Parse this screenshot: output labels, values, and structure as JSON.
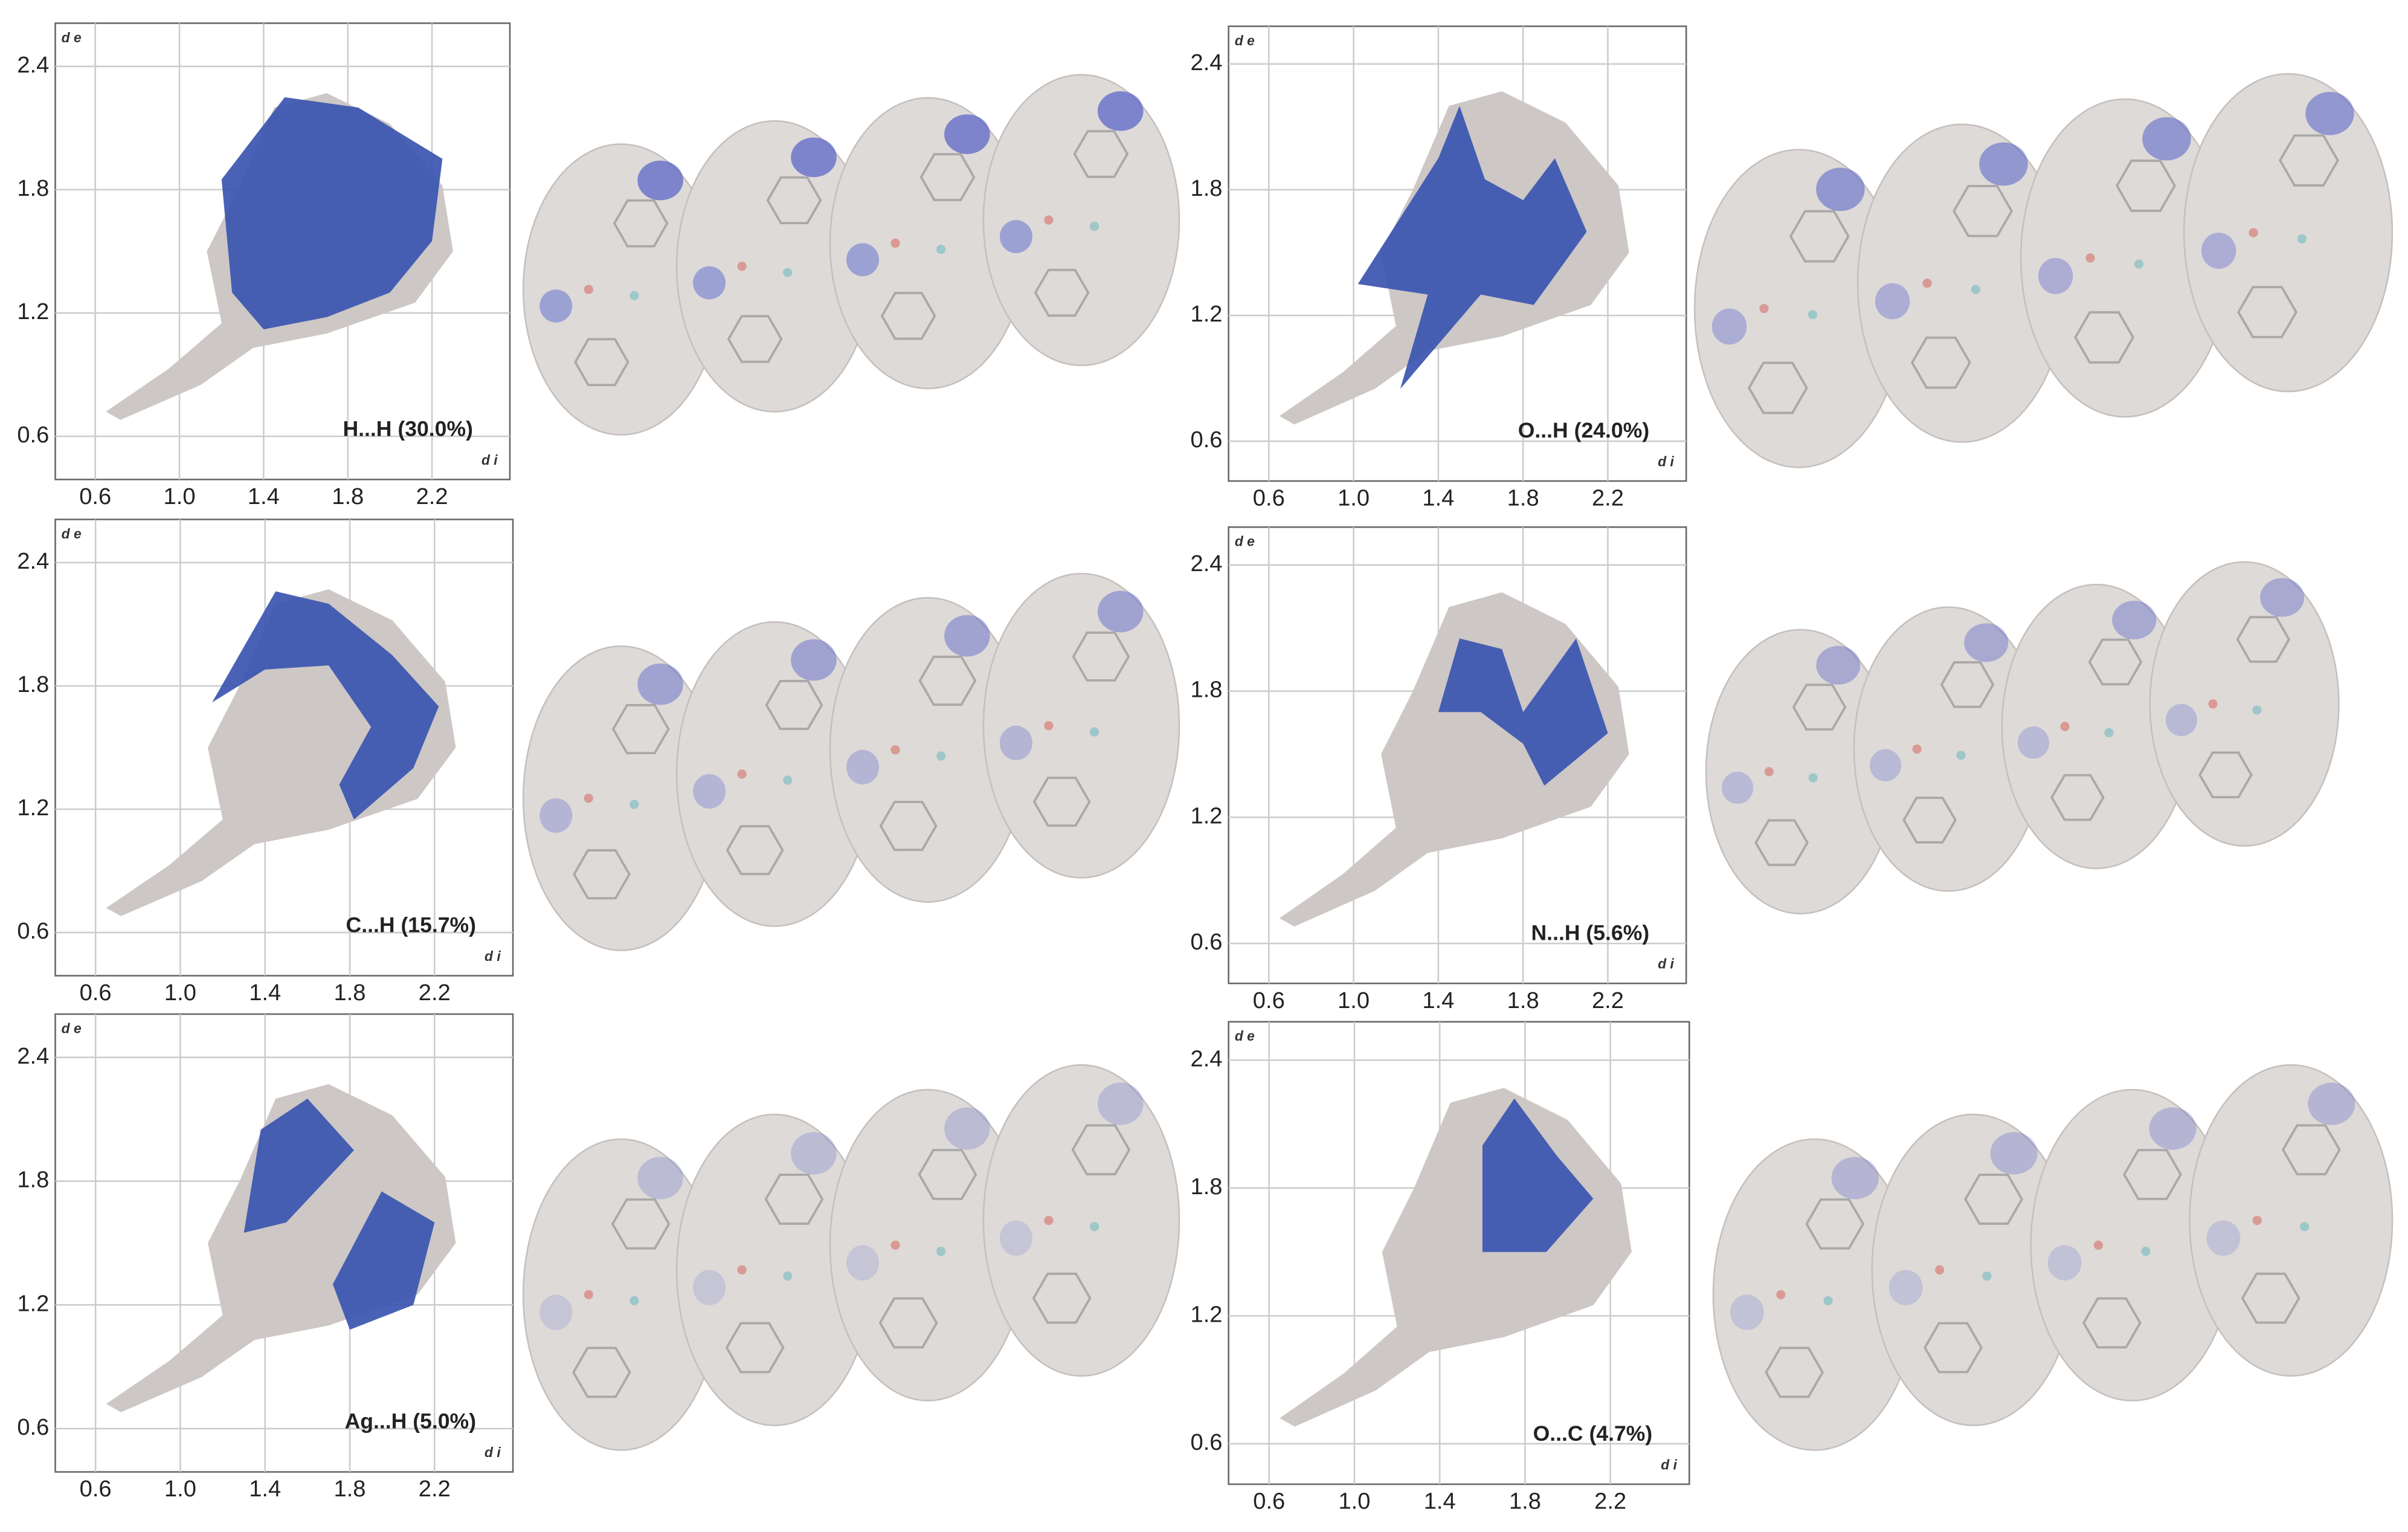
{
  "chart_data": [
    {
      "type": "fingerprint",
      "annotation": "H...H (30.0%)",
      "xlabel": "d i",
      "ylabel": "d e",
      "xlim": [
        0.41,
        2.57
      ],
      "ylim": [
        0.39,
        2.61
      ],
      "xticks": [
        0.6,
        {
          "value": 1,
          "label": "1.0"
        },
        1.4,
        1.8,
        2.2
      ],
      "yticks": [
        0.6,
        1.2,
        1.8,
        2.4
      ],
      "grid": true,
      "color": "#3a55b0"
    },
    {
      "type": "fingerprint",
      "annotation": "C...H (15.7%)",
      "xlabel": "d i",
      "ylabel": "d e",
      "xlim": [
        0.41,
        2.57
      ],
      "ylim": [
        0.39,
        2.61
      ],
      "xticks": [
        0.6,
        {
          "value": 1,
          "label": "1.0"
        },
        1.4,
        1.8,
        2.2
      ],
      "yticks": [
        0.6,
        1.2,
        1.8,
        2.4
      ],
      "grid": true,
      "color": "#3a55b0"
    },
    {
      "type": "fingerprint",
      "annotation": "Ag...H (5.0%)",
      "xlabel": "d i",
      "ylabel": "d e",
      "xlim": [
        0.41,
        2.57
      ],
      "ylim": [
        0.39,
        2.61
      ],
      "xticks": [
        0.6,
        {
          "value": 1,
          "label": "1.0"
        },
        1.4,
        1.8,
        2.2
      ],
      "yticks": [
        0.6,
        1.2,
        1.8,
        2.4
      ],
      "grid": true,
      "color": "#3a55b0"
    },
    {
      "type": "fingerprint",
      "annotation": "O...H (24.0%)",
      "xlabel": "d i",
      "ylabel": "d e",
      "xlim": [
        0.41,
        2.57
      ],
      "ylim": [
        0.41,
        2.58
      ],
      "xticks": [
        0.6,
        {
          "value": 1,
          "label": "1.0"
        },
        1.4,
        1.8,
        2.2
      ],
      "yticks": [
        0.6,
        1.2,
        1.8,
        2.4
      ],
      "grid": true,
      "color": "#3a55b0"
    },
    {
      "type": "fingerprint",
      "annotation": "N...H (5.6%)",
      "xlabel": "d i",
      "ylabel": "d e",
      "xlim": [
        0.41,
        2.57
      ],
      "ylim": [
        0.41,
        2.58
      ],
      "xticks": [
        0.6,
        {
          "value": 1,
          "label": "1.0"
        },
        1.4,
        1.8,
        2.2
      ],
      "yticks": [
        0.6,
        1.2,
        1.8,
        2.4
      ],
      "grid": true,
      "color": "#3a55b0"
    },
    {
      "type": "fingerprint",
      "annotation": "O...C (4.7%)",
      "xlabel": "d i",
      "ylabel": "d e",
      "xlim": [
        0.41,
        2.57
      ],
      "ylim": [
        0.41,
        2.58
      ],
      "xticks": [
        0.6,
        {
          "value": 1,
          "label": "1.0"
        },
        1.4,
        1.8,
        2.2
      ],
      "yticks": [
        0.6,
        1.2,
        1.8,
        2.4
      ],
      "grid": true,
      "color": "#3a55b0"
    }
  ]
}
